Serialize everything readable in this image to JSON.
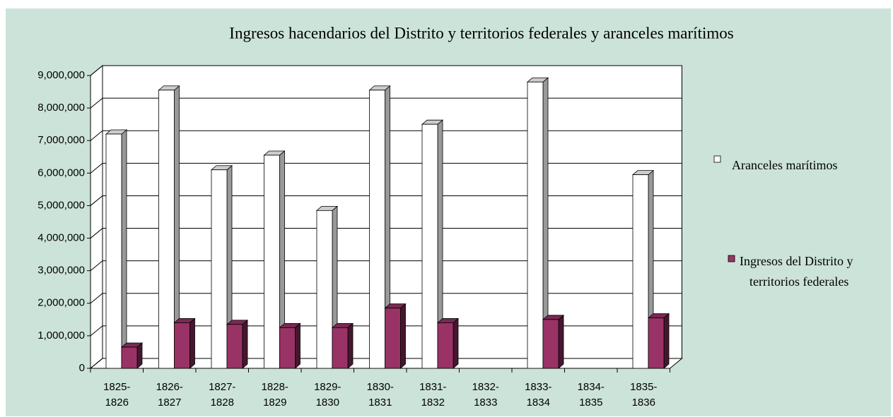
{
  "chart_data": {
    "type": "bar3d",
    "title": "Ingresos hacendarios del Distrito y territorios federales y aranceles marítimos",
    "categories": [
      "1825-1826",
      "1826-1827",
      "1827-1828",
      "1828-1829",
      "1829-1830",
      "1830-1831",
      "1831-1832",
      "1832-1833",
      "1833-1834",
      "1834-1835",
      "1835-1836"
    ],
    "series": [
      {
        "name": "Aranceles marítimos",
        "color": "#ffffff",
        "values": [
          7200000,
          8550000,
          6100000,
          6550000,
          4850000,
          8550000,
          7500000,
          null,
          8800000,
          null,
          5950000
        ]
      },
      {
        "name": "Ingresos del Distrito y territorios federales",
        "color": "#993366",
        "values": [
          650000,
          1400000,
          1350000,
          1250000,
          1250000,
          1850000,
          1400000,
          null,
          1500000,
          null,
          1550000
        ]
      }
    ],
    "ylim": [
      0,
      9000000
    ],
    "yticks": [
      0,
      {
        "value": 1000000,
        "label": "1,000,000"
      },
      {
        "value": 2000000,
        "label": "2,000,000"
      },
      {
        "value": 3000000,
        "label": "3,000,000"
      },
      {
        "value": 4000000,
        "label": "4,000,000"
      },
      {
        "value": 5000000,
        "label": "5,000,000"
      },
      {
        "value": 6000000,
        "label": "6,000,000"
      },
      {
        "value": 7000000,
        "label": "7,000,000"
      },
      {
        "value": 8000000,
        "label": "8,000,000"
      },
      {
        "value": 9000000,
        "label": "9,000,000"
      }
    ],
    "grid": true
  }
}
